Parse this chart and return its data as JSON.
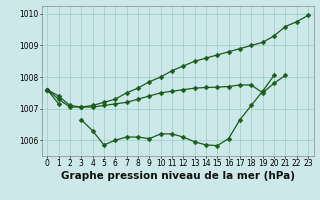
{
  "title": "Graphe pression niveau de la mer (hPa)",
  "hours": [
    0,
    1,
    2,
    3,
    4,
    5,
    6,
    7,
    8,
    9,
    10,
    11,
    12,
    13,
    14,
    15,
    16,
    17,
    18,
    19,
    20,
    21,
    22,
    23
  ],
  "line1": [
    1007.6,
    1007.4,
    1007.1,
    1007.05,
    1007.1,
    1007.2,
    1007.3,
    1007.5,
    1007.65,
    1007.85,
    1008.0,
    1008.2,
    1008.35,
    1008.5,
    1008.6,
    1008.7,
    1008.8,
    1008.9,
    1009.0,
    1009.1,
    1009.3,
    1009.6,
    1009.75,
    1009.95
  ],
  "line2": [
    1007.6,
    1007.3,
    1007.05,
    1007.05,
    1007.05,
    1007.1,
    1007.15,
    1007.2,
    1007.3,
    1007.4,
    1007.5,
    1007.55,
    1007.6,
    1007.65,
    1007.67,
    1007.68,
    1007.7,
    1007.75,
    1007.75,
    1007.5,
    1007.8,
    1008.05,
    null,
    null
  ],
  "line3": [
    1007.6,
    null,
    null,
    1006.65,
    1006.3,
    1005.85,
    1006.0,
    1006.1,
    1006.1,
    1006.05,
    1006.2,
    1006.2,
    1006.1,
    1005.95,
    1005.85,
    1005.83,
    1006.05,
    1006.65,
    1007.1,
    1007.55,
    1008.05,
    null,
    null,
    null
  ],
  "line4": [
    1007.6,
    1007.15,
    null,
    null,
    null,
    null,
    null,
    null,
    null,
    null,
    null,
    null,
    null,
    null,
    null,
    null,
    null,
    null,
    null,
    null,
    null,
    null,
    null,
    null
  ],
  "ylim": [
    1005.5,
    1010.25
  ],
  "yticks": [
    1006,
    1007,
    1008,
    1009,
    1010
  ],
  "bg_color": "#cce8e8",
  "grid_color": "#99cccc",
  "line_color": "#1a5c1a",
  "markersize": 2.5,
  "linewidth": 0.9,
  "title_fontsize": 7.5,
  "tick_fontsize": 5.5
}
